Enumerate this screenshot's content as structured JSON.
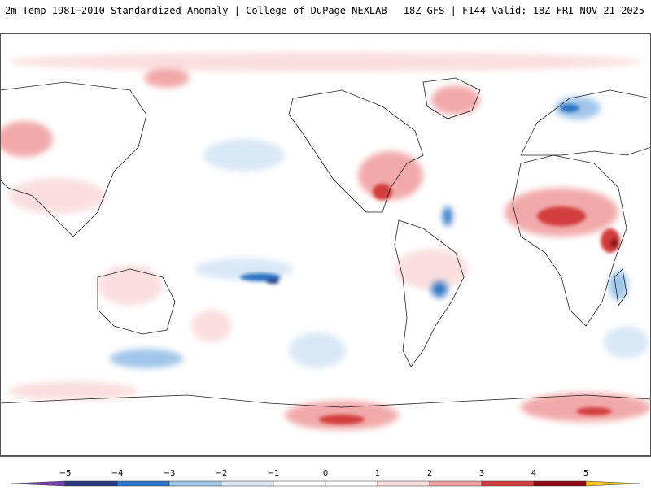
{
  "header": {
    "left_title": "2m Temp 1981−2010 Standardized Anomaly | College of DuPage NEXLAB",
    "right_title": "18Z GFS | F144 Valid: 18Z FRI NOV 21 2025"
  },
  "map": {
    "projection": "global-equirectangular",
    "variable": "2m temperature standardized anomaly",
    "anomaly_regions": [
      {
        "name": "north-africa-warm",
        "sign": "positive",
        "intensity": 3
      },
      {
        "name": "eastern-us-warm",
        "sign": "positive",
        "intensity": 3
      },
      {
        "name": "east-africa-warm",
        "sign": "positive",
        "intensity": 4
      },
      {
        "name": "antarctic-coast-warm",
        "sign": "positive",
        "intensity": 3
      },
      {
        "name": "southern-ocean-warm-east",
        "sign": "positive",
        "intensity": 3
      },
      {
        "name": "australia-warm",
        "sign": "positive",
        "intensity": 2
      },
      {
        "name": "siberia-warm",
        "sign": "positive",
        "intensity": 2
      },
      {
        "name": "scandinavia-cold",
        "sign": "negative",
        "intensity": 3
      },
      {
        "name": "south-pacific-cold",
        "sign": "negative",
        "intensity": 4
      },
      {
        "name": "atlantic-cold",
        "sign": "negative",
        "intensity": 3
      },
      {
        "name": "south-america-cold",
        "sign": "negative",
        "intensity": 3
      },
      {
        "name": "southern-ocean-cold",
        "sign": "negative",
        "intensity": 2
      },
      {
        "name": "madagascar-cold",
        "sign": "negative",
        "intensity": 2
      }
    ]
  },
  "colorbar": {
    "ticks": [
      "−5",
      "−4",
      "−3",
      "−2",
      "−1",
      "0",
      "1",
      "2",
      "3",
      "4",
      "5"
    ],
    "colors": {
      "lt_-5": "#7d3fb0",
      "-5_-4": "#283c7e",
      "-4_-3": "#2f74c4",
      "-3_-2": "#9cc3e8",
      "-2_-1": "#d8e7f6",
      "-1_0": "#ffffff",
      "0_1": "#ffffff",
      "1_2": "#fadbdb",
      "2_3": "#f0a0a0",
      "3_4": "#d23c3c",
      "4_5": "#8b0a14",
      "gt_5": "#f5c518"
    }
  }
}
